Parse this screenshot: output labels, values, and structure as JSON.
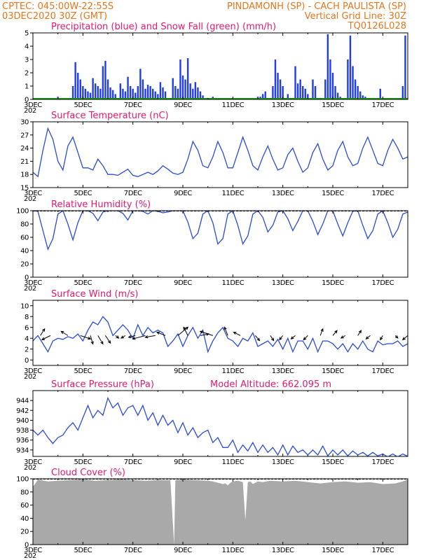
{
  "header": {
    "line1_left": "CPTEC:   045:00W-22:55S",
    "line1_right": "PINDAMONH (SP) - CACH PAULISTA (SP)",
    "line2_left": "03DEC2020 30Z (GMT)",
    "line2_right": "Vertical Grid Line: 30Z",
    "line3_right": "TQ0126L028"
  },
  "colors": {
    "header": "#e8751a",
    "panel_title": "#e6186e",
    "precip": "#1f3cf0",
    "snow": "#10a010",
    "series": "#2a4bd7",
    "cloud_fill": "#a9a9a9",
    "arrow": "#000000"
  },
  "x_axis": {
    "tick_labels": [
      "3DEC",
      "5DEC",
      "7DEC",
      "9DEC",
      "11DEC",
      "13DEC",
      "15DEC",
      "17DEC"
    ],
    "start_overlap": "202"
  },
  "chart_data": [
    {
      "type": "bar",
      "title": "Precipitation (blue) and Snow Fall (green) (mm/h)",
      "ylim": [
        0,
        5
      ],
      "yticks": [
        0,
        1,
        2,
        3,
        4,
        5
      ],
      "series": [
        {
          "name": "Precipitation",
          "x": [
            3.0,
            3.5,
            3.7,
            4.0,
            4.6,
            4.7,
            4.8,
            4.9,
            5.0,
            5.1,
            5.2,
            5.3,
            5.4,
            5.5,
            5.6,
            5.7,
            5.8,
            5.9,
            6.0,
            6.1,
            6.2,
            6.3,
            6.5,
            6.6,
            6.7,
            6.8,
            6.9,
            7.0,
            7.1,
            7.2,
            7.3,
            7.4,
            7.5,
            7.6,
            7.7,
            7.8,
            7.9,
            8.0,
            8.1,
            8.2,
            8.3,
            8.6,
            8.7,
            8.8,
            8.9,
            9.0,
            9.1,
            9.2,
            9.3,
            9.4,
            9.5,
            9.6,
            9.7,
            9.8,
            10.2,
            12.0,
            12.1,
            12.2,
            12.3,
            12.6,
            12.7,
            12.8,
            12.9,
            13.0,
            13.2,
            13.5,
            13.6,
            13.7,
            13.8,
            13.9,
            14.0,
            14.2,
            14.3,
            14.7,
            14.8,
            14.9,
            15.0,
            15.1,
            15.2,
            15.3,
            15.6,
            15.7,
            15.8,
            15.9,
            16.0,
            16.1,
            16.2,
            16.3,
            16.9,
            17.8,
            17.9
          ],
          "values": [
            0.1,
            0.1,
            0.1,
            0.2,
            1.0,
            2.8,
            2.0,
            1.5,
            1.0,
            0.8,
            0.6,
            0.5,
            1.6,
            1.2,
            1.0,
            0.8,
            2.5,
            2.9,
            1.5,
            0.9,
            0.7,
            0.4,
            1.2,
            0.8,
            0.6,
            1.7,
            1.0,
            0.8,
            0.5,
            1.0,
            2.3,
            1.5,
            0.8,
            1.1,
            1.0,
            0.8,
            0.6,
            0.4,
            1.3,
            0.9,
            0.6,
            1.6,
            1.0,
            0.8,
            3.0,
            1.8,
            1.5,
            3.1,
            1.2,
            0.8,
            1.3,
            0.9,
            0.6,
            0.3,
            0.2,
            0.2,
            0.2,
            0.4,
            0.6,
            1.0,
            3.0,
            2.0,
            1.5,
            1.0,
            0.4,
            2.5,
            1.2,
            1.5,
            1.0,
            0.8,
            0.4,
            1.5,
            1.0,
            1.5,
            4.9,
            3.0,
            2.0,
            1.0,
            0.5,
            0.2,
            3.0,
            4.8,
            2.5,
            1.5,
            1.0,
            0.6,
            0.3,
            0.2,
            0.8,
            1.0,
            4.8
          ]
        },
        {
          "name": "Snow Fall",
          "x": [
            3.0,
            18.0
          ],
          "values": [
            0,
            0
          ]
        }
      ]
    },
    {
      "type": "line",
      "title": "Surface Temperature (nC)",
      "ylim": [
        15,
        30
      ],
      "yticks": [
        15,
        18,
        21,
        24,
        27,
        30
      ],
      "x": [
        3.0,
        3.2,
        3.4,
        3.6,
        3.8,
        4.0,
        4.2,
        4.4,
        4.6,
        4.8,
        5.0,
        5.2,
        5.4,
        5.6,
        5.8,
        6.0,
        6.2,
        6.4,
        6.6,
        6.8,
        7.0,
        7.2,
        7.4,
        7.6,
        7.8,
        8.0,
        8.2,
        8.4,
        8.6,
        8.8,
        9.0,
        9.2,
        9.4,
        9.6,
        9.8,
        10.0,
        10.2,
        10.4,
        10.6,
        10.8,
        11.0,
        11.2,
        11.4,
        11.6,
        11.8,
        12.0,
        12.2,
        12.4,
        12.6,
        12.8,
        13.0,
        13.2,
        13.4,
        13.6,
        13.8,
        14.0,
        14.2,
        14.4,
        14.6,
        14.8,
        15.0,
        15.2,
        15.4,
        15.6,
        15.8,
        16.0,
        16.2,
        16.4,
        16.6,
        16.8,
        17.0,
        17.2,
        17.4,
        17.6,
        17.8,
        18.0
      ],
      "values": [
        18.5,
        17.5,
        23.5,
        28.5,
        26.0,
        21.0,
        19.0,
        24.5,
        26.5,
        23.0,
        19.5,
        19.5,
        19.0,
        21.5,
        20.0,
        18.0,
        18.0,
        17.8,
        18.5,
        19.2,
        17.8,
        17.5,
        18.0,
        18.5,
        18.0,
        18.8,
        20.0,
        19.2,
        18.3,
        18.0,
        18.5,
        21.5,
        25.5,
        23.5,
        20.0,
        19.5,
        22.0,
        25.5,
        23.0,
        19.5,
        19.5,
        23.0,
        26.5,
        23.5,
        20.0,
        19.0,
        22.0,
        24.5,
        21.5,
        19.0,
        19.5,
        22.5,
        24.0,
        21.0,
        18.5,
        19.5,
        23.0,
        25.0,
        21.5,
        19.0,
        20.0,
        23.5,
        25.5,
        22.0,
        20.0,
        20.5,
        24.0,
        26.5,
        23.5,
        20.5,
        20.0,
        23.5,
        26.0,
        24.0,
        21.5,
        22.0
      ]
    },
    {
      "type": "line",
      "title": "Relative Humidity (%)",
      "ylim": [
        0,
        100
      ],
      "yticks": [
        0,
        20,
        40,
        60,
        80,
        100
      ],
      "x": [
        3.0,
        3.2,
        3.4,
        3.6,
        3.8,
        4.0,
        4.2,
        4.4,
        4.6,
        4.8,
        5.0,
        5.2,
        5.4,
        5.6,
        5.8,
        6.0,
        6.2,
        6.4,
        6.6,
        6.8,
        7.0,
        7.2,
        7.4,
        7.6,
        7.8,
        8.0,
        8.2,
        8.4,
        8.6,
        8.8,
        9.0,
        9.2,
        9.4,
        9.6,
        9.8,
        10.0,
        10.2,
        10.4,
        10.6,
        10.8,
        11.0,
        11.2,
        11.4,
        11.6,
        11.8,
        12.0,
        12.2,
        12.4,
        12.6,
        12.8,
        13.0,
        13.2,
        13.4,
        13.6,
        13.8,
        14.0,
        14.2,
        14.4,
        14.6,
        14.8,
        15.0,
        15.2,
        15.4,
        15.6,
        15.8,
        16.0,
        16.2,
        16.4,
        16.6,
        16.8,
        17.0,
        17.2,
        17.4,
        17.6,
        17.8,
        18.0
      ],
      "values": [
        100,
        99,
        70,
        42,
        58,
        95,
        100,
        80,
        56,
        82,
        100,
        100,
        96,
        85,
        98,
        100,
        100,
        100,
        96,
        86,
        100,
        100,
        99,
        95,
        100,
        99,
        97,
        98,
        100,
        100,
        100,
        83,
        58,
        66,
        95,
        100,
        82,
        50,
        58,
        95,
        100,
        78,
        50,
        62,
        95,
        100,
        90,
        68,
        78,
        98,
        100,
        88,
        70,
        84,
        100,
        100,
        84,
        64,
        80,
        100,
        100,
        80,
        62,
        82,
        99,
        100,
        78,
        58,
        70,
        95,
        100,
        82,
        60,
        72,
        95,
        98
      ]
    },
    {
      "type": "line",
      "title": "Surface Wind (m/s)",
      "ylim": [
        -1,
        11
      ],
      "yticks": [
        0,
        2,
        4,
        6,
        8,
        10
      ],
      "x": [
        3.0,
        3.2,
        3.4,
        3.6,
        3.8,
        4.0,
        4.2,
        4.4,
        4.6,
        4.8,
        5.0,
        5.2,
        5.4,
        5.6,
        5.8,
        6.0,
        6.2,
        6.4,
        6.6,
        6.8,
        7.0,
        7.2,
        7.4,
        7.6,
        7.8,
        8.0,
        8.2,
        8.4,
        8.6,
        8.8,
        9.0,
        9.2,
        9.4,
        9.6,
        9.8,
        10.0,
        10.2,
        10.4,
        10.6,
        10.8,
        11.0,
        11.2,
        11.4,
        11.6,
        11.8,
        12.0,
        12.2,
        12.4,
        12.6,
        12.8,
        13.0,
        13.2,
        13.4,
        13.6,
        13.8,
        14.0,
        14.2,
        14.4,
        14.6,
        14.8,
        15.0,
        15.2,
        15.4,
        15.6,
        15.8,
        16.0,
        16.2,
        16.4,
        16.6,
        16.8,
        17.0,
        17.2,
        17.4,
        17.6,
        17.8,
        18.0
      ],
      "values": [
        3.5,
        4.5,
        3.0,
        1.5,
        3.5,
        4.0,
        3.8,
        4.3,
        4.0,
        4.8,
        3.5,
        5.5,
        7.0,
        6.5,
        8.0,
        7.0,
        4.5,
        5.5,
        6.5,
        5.5,
        4.0,
        6.5,
        4.5,
        6.0,
        5.0,
        5.5,
        5.0,
        2.5,
        3.5,
        4.8,
        2.5,
        4.5,
        6.0,
        4.0,
        5.5,
        1.5,
        3.5,
        5.0,
        6.0,
        4.0,
        3.5,
        2.5,
        4.0,
        3.5,
        5.0,
        2.5,
        3.0,
        3.5,
        2.5,
        3.8,
        2.0,
        4.0,
        1.5,
        3.5,
        3.5,
        2.0,
        4.0,
        1.5,
        3.5,
        3.5,
        3.0,
        2.0,
        3.0,
        1.5,
        3.0,
        2.0,
        3.5,
        2.0,
        1.5,
        3.5,
        2.8,
        3.0,
        3.0,
        3.5,
        2.5,
        3.0
      ],
      "arrows": {
        "x": [
          3.3,
          3.7,
          4.4,
          4.9,
          5.3,
          5.6,
          5.9,
          6.3,
          6.7,
          7.1,
          7.5,
          7.9,
          8.3,
          8.8,
          9.2,
          9.7,
          10.2,
          10.8,
          11.3,
          11.9,
          12.5,
          13.0,
          13.5,
          14.0,
          14.5,
          15.0,
          15.5,
          16.0,
          16.5,
          17.0,
          17.5,
          18.0
        ],
        "u": [
          0.5,
          -1.0,
          -0.8,
          1.2,
          0.3,
          0.6,
          0.6,
          0.4,
          -0.5,
          -0.8,
          -1.5,
          -1.2,
          -1.0,
          1.2,
          -0.5,
          1.0,
          -1.5,
          -0.4,
          -0.8,
          0.5,
          0.4,
          -0.4,
          -0.5,
          -0.5,
          0.3,
          0.5,
          -0.5,
          0.4,
          -0.5,
          -0.3,
          0.3,
          -0.6
        ],
        "v": [
          0.8,
          -0.5,
          0.5,
          -0.4,
          -1.0,
          -1.0,
          -0.9,
          -0.3,
          -0.3,
          -0.2,
          -0.4,
          -0.2,
          0.4,
          1.0,
          1.0,
          0.2,
          0.5,
          1.0,
          0.4,
          -0.6,
          -0.6,
          -0.5,
          -0.4,
          -0.5,
          0.8,
          0.6,
          -0.3,
          0.6,
          -0.4,
          -0.5,
          -0.3,
          -0.5
        ]
      }
    },
    {
      "type": "line",
      "title": "Surface Pressure (hPa)",
      "annotation": "Model Altitude: 662.095 m",
      "ylim": [
        932.7,
        946
      ],
      "yticks": [
        934,
        936,
        938,
        940,
        942,
        944
      ],
      "x": [
        3.0,
        3.2,
        3.4,
        3.6,
        3.8,
        4.0,
        4.2,
        4.4,
        4.6,
        4.8,
        5.0,
        5.2,
        5.4,
        5.6,
        5.8,
        6.0,
        6.2,
        6.4,
        6.6,
        6.8,
        7.0,
        7.2,
        7.4,
        7.6,
        7.8,
        8.0,
        8.2,
        8.4,
        8.6,
        8.8,
        9.0,
        9.2,
        9.4,
        9.6,
        9.8,
        10.0,
        10.2,
        10.4,
        10.6,
        10.8,
        11.0,
        11.2,
        11.4,
        11.6,
        11.8,
        12.0,
        12.2,
        12.4,
        12.6,
        12.8,
        13.0,
        13.2,
        13.4,
        13.6,
        13.8,
        14.0,
        14.2,
        14.4,
        14.6,
        14.8,
        15.0,
        15.2,
        15.4,
        15.6,
        15.8,
        16.0,
        16.2,
        16.4,
        16.6,
        16.8,
        17.0,
        17.2,
        17.4,
        17.6,
        17.8,
        18.0
      ],
      "values": [
        938.0,
        937.0,
        938.0,
        936.5,
        935.3,
        936.5,
        937.0,
        938.5,
        939.5,
        938.0,
        940.5,
        943.0,
        940.5,
        942.0,
        941.0,
        944.5,
        942.5,
        943.5,
        941.0,
        942.5,
        943.0,
        941.0,
        943.0,
        940.0,
        941.5,
        939.0,
        941.0,
        939.0,
        940.0,
        937.5,
        939.5,
        937.0,
        938.5,
        936.5,
        937.5,
        938.0,
        935.5,
        936.5,
        934.5,
        934.5,
        936.0,
        933.5,
        935.0,
        933.8,
        935.5,
        933.5,
        935.0,
        933.5,
        934.5,
        933.0,
        935.0,
        933.0,
        934.8,
        933.5,
        934.0,
        933.0,
        934.0,
        933.0,
        934.8,
        932.8,
        934.0,
        933.0,
        934.0,
        932.8,
        933.8,
        933.0,
        933.5,
        932.8,
        933.5,
        932.8,
        933.2,
        932.6,
        933.2,
        932.6,
        933.2,
        932.7
      ]
    },
    {
      "type": "area",
      "title": "Cloud Cover (%)",
      "ylim": [
        0,
        100
      ],
      "yticks": [
        0,
        20,
        40,
        60,
        80,
        100
      ],
      "x": [
        3.0,
        3.1,
        3.2,
        3.6,
        4.0,
        4.5,
        5.0,
        5.5,
        6.0,
        6.5,
        7.0,
        7.5,
        8.0,
        8.5,
        8.65,
        8.7,
        8.75,
        9.0,
        9.5,
        10.0,
        10.2,
        10.4,
        10.6,
        10.7,
        10.8,
        10.9,
        11.0,
        11.2,
        11.4,
        11.5,
        11.6,
        11.7,
        11.8,
        12.0,
        12.2,
        12.5,
        13.0,
        13.5,
        14.0,
        14.5,
        15.0,
        15.5,
        16.0,
        16.5,
        17.0,
        17.5,
        17.8,
        18.0
      ],
      "values": [
        88,
        93,
        99,
        96,
        97,
        98,
        99,
        97,
        98,
        99,
        98,
        97,
        98,
        98,
        0,
        98,
        98,
        99,
        98,
        97,
        96,
        94,
        92,
        93,
        90,
        94,
        96,
        97,
        95,
        37,
        95,
        96,
        92,
        96,
        95,
        97,
        96,
        97,
        95,
        93,
        95,
        96,
        94,
        95,
        92,
        93,
        96,
        99
      ]
    }
  ]
}
